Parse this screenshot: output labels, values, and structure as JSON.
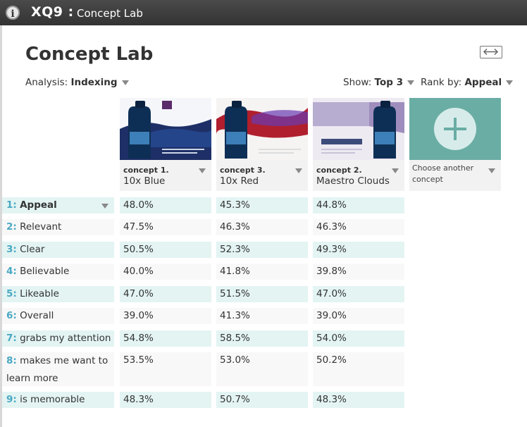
{
  "app": {
    "brand": "XQ9 :",
    "name": "Concept Lab"
  },
  "page": {
    "title": "Concept Lab"
  },
  "controls": {
    "analysis_label": "Analysis:",
    "analysis_value": "Indexing",
    "show_label": "Show:",
    "show_value": "Top 3",
    "rank_label": "Rank by:",
    "rank_value": "Appeal"
  },
  "concepts": [
    {
      "code": "concept 1.",
      "name": "10x Blue"
    },
    {
      "code": "concept 3.",
      "name": "10x Red"
    },
    {
      "code": "concept 2.",
      "name": "Maestro Clouds"
    }
  ],
  "add_concept": {
    "label": "Choose another concept"
  },
  "rows": [
    {
      "num": "1:",
      "label": "Appeal",
      "values": [
        "48.0%",
        "45.3%",
        "44.8%"
      ]
    },
    {
      "num": "2:",
      "label": "Relevant",
      "values": [
        "47.5%",
        "46.3%",
        "46.3%"
      ]
    },
    {
      "num": "3:",
      "label": "Clear",
      "values": [
        "50.5%",
        "52.3%",
        "49.3%"
      ]
    },
    {
      "num": "4:",
      "label": "Believable",
      "values": [
        "40.0%",
        "41.8%",
        "39.8%"
      ]
    },
    {
      "num": "5:",
      "label": "Likeable",
      "values": [
        "47.0%",
        "51.5%",
        "47.0%"
      ]
    },
    {
      "num": "6:",
      "label": "Overall",
      "values": [
        "39.0%",
        "41.3%",
        "39.0%"
      ]
    },
    {
      "num": "7:",
      "label": "grabs my attention",
      "values": [
        "54.8%",
        "58.5%",
        "54.0%"
      ]
    },
    {
      "num": "8:",
      "label": "makes me want to learn more",
      "values": [
        "53.5%",
        "53.0%",
        "50.2%"
      ]
    },
    {
      "num": "9:",
      "label": "is memorable",
      "values": [
        "48.3%",
        "50.7%",
        "48.3%"
      ]
    }
  ],
  "icons": [
    "info-icon",
    "expand-icon",
    "chevron-down-icon",
    "plus-icon"
  ],
  "colors": {
    "accent": "#4aa8c3",
    "teal_row": "#e3f4f3",
    "add_tile": "#6aada4"
  }
}
